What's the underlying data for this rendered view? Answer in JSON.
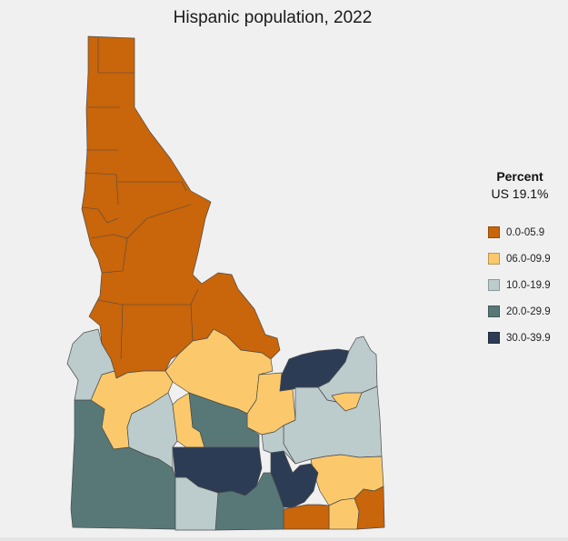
{
  "title": "Hispanic population, 2022",
  "legend": {
    "title": "Percent",
    "subtitle": "US 19.1%",
    "bins": [
      {
        "label": "0.0-05.9",
        "color": "#c9650a"
      },
      {
        "label": "06.0-09.9",
        "color": "#fbc96b"
      },
      {
        "label": "10.0-19.9",
        "color": "#bccbcc"
      },
      {
        "label": "20.0-29.9",
        "color": "#587878"
      },
      {
        "label": "30.0-39.9",
        "color": "#2c3c55"
      }
    ]
  },
  "map": {
    "state": "Idaho",
    "county_class_counts": {
      "0.0-05.9": 18,
      "06.0-09.9": 10,
      "10.0-19.9": 9,
      "20.0-29.9": 3,
      "30.0-39.9": 4
    }
  }
}
